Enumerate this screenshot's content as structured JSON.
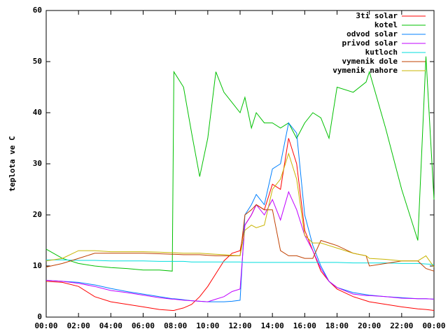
{
  "chart_data": {
    "type": "line",
    "ylabel": "teplota ve C",
    "x": [
      0,
      1,
      2,
      3,
      4,
      5,
      6,
      7,
      7.8,
      7.9,
      8.5,
      9,
      9.5,
      10,
      10.5,
      11,
      11.5,
      12,
      12.3,
      12.7,
      13,
      13.5,
      14,
      14.5,
      15,
      15.5,
      16,
      16.5,
      17,
      17.5,
      18,
      19,
      19.8,
      20,
      21,
      22,
      23,
      23.5,
      24
    ],
    "xlim": [
      0,
      24
    ],
    "xticks": [
      {
        "value": 0,
        "label": "00:00"
      },
      {
        "value": 2,
        "label": "02:00"
      },
      {
        "value": 4,
        "label": "04:00"
      },
      {
        "value": 6,
        "label": "06:00"
      },
      {
        "value": 8,
        "label": "08:00"
      },
      {
        "value": 10,
        "label": "10:00"
      },
      {
        "value": 12,
        "label": "12:00"
      },
      {
        "value": 14,
        "label": "14:00"
      },
      {
        "value": 16,
        "label": "16:00"
      },
      {
        "value": 18,
        "label": "18:00"
      },
      {
        "value": 20,
        "label": "20:00"
      },
      {
        "value": 22,
        "label": "22:00"
      },
      {
        "value": 24,
        "label": "00:00"
      }
    ],
    "ylim": [
      0,
      60
    ],
    "yticks": [
      0,
      10,
      20,
      30,
      40,
      50,
      60
    ],
    "grid": false,
    "legend": "top-right",
    "series": [
      {
        "name": "3ti solar",
        "color": "#ff0000",
        "values": [
          7,
          6.8,
          6,
          4,
          3,
          2.5,
          2,
          1.5,
          1.3,
          1.3,
          1.8,
          2.5,
          4,
          6,
          8.5,
          11,
          12.5,
          13,
          18,
          20,
          22,
          21,
          26,
          25,
          35,
          30,
          17,
          13,
          9,
          7,
          5.5,
          4,
          3.2,
          3,
          2.5,
          2,
          1.6,
          1.5,
          1.3
        ]
      },
      {
        "name": "kotel",
        "color": "#00c000",
        "values": [
          13.3,
          11.5,
          10.5,
          10,
          9.7,
          9.5,
          9.2,
          9.2,
          9,
          48,
          45,
          36,
          27.5,
          35,
          48,
          44,
          42,
          40,
          43,
          37,
          40,
          38,
          38,
          37,
          38,
          35,
          38,
          40,
          39,
          35,
          45,
          44,
          46,
          48,
          37,
          25,
          15,
          51,
          23
        ]
      },
      {
        "name": "odvod solar",
        "color": "#0080ff",
        "values": [
          7.2,
          7,
          6.8,
          6.3,
          5.6,
          5,
          4.5,
          4,
          3.6,
          3.6,
          3.4,
          3.2,
          3.1,
          3,
          3,
          3,
          3.1,
          3.3,
          20,
          22,
          24,
          22,
          29,
          30,
          38,
          36,
          20,
          14,
          10,
          7,
          5.8,
          4.8,
          4.4,
          4.3,
          4,
          3.8,
          3.6,
          3.6,
          3.5
        ]
      },
      {
        "name": "privod solar",
        "color": "#c000ff",
        "values": [
          7.2,
          7,
          6.6,
          6,
          5.2,
          4.8,
          4.3,
          3.8,
          3.5,
          3.5,
          3.3,
          3.2,
          3.1,
          3,
          3.5,
          4,
          5,
          5.5,
          18,
          20,
          22,
          20,
          23,
          19,
          24.5,
          21,
          16,
          13,
          9.5,
          7,
          5.8,
          4.5,
          4.2,
          4.2,
          4,
          3.7,
          3.6,
          3.6,
          3.5
        ]
      },
      {
        "name": "kutloch",
        "color": "#00dddd",
        "values": [
          11.2,
          11.2,
          11.1,
          11.1,
          11,
          11,
          11,
          10.9,
          10.9,
          10.9,
          10.9,
          10.8,
          10.8,
          10.8,
          10.8,
          10.8,
          10.8,
          10.8,
          10.7,
          10.7,
          10.7,
          10.7,
          10.7,
          10.7,
          10.7,
          10.7,
          10.7,
          10.7,
          10.7,
          10.7,
          10.7,
          10.6,
          10.6,
          10.6,
          10.6,
          10.5,
          10.5,
          10.4,
          10.3
        ]
      },
      {
        "name": "vymenik dole",
        "color": "#c04000",
        "values": [
          9.8,
          10.5,
          11.5,
          12.5,
          12.5,
          12.5,
          12.5,
          12.4,
          12.3,
          12.3,
          12.2,
          12.2,
          12.2,
          12.1,
          12,
          12,
          12,
          12,
          20,
          21,
          22,
          21,
          21,
          13,
          12,
          12,
          11.5,
          11.5,
          15,
          14.5,
          14,
          12.5,
          12,
          10,
          10.5,
          11,
          11,
          9.5,
          9
        ]
      },
      {
        "name": "vymenik nahore",
        "color": "#c8b400",
        "values": [
          11,
          11.5,
          13,
          13,
          12.8,
          12.8,
          12.8,
          12.7,
          12.6,
          12.6,
          12.5,
          12.5,
          12.5,
          12.4,
          12.3,
          12.2,
          12.1,
          12,
          17,
          18,
          17.5,
          18,
          25,
          27,
          32,
          27,
          16,
          14.5,
          14.5,
          14,
          13.5,
          12.5,
          12,
          11.5,
          11.3,
          11,
          11,
          12,
          9.8
        ]
      }
    ]
  }
}
